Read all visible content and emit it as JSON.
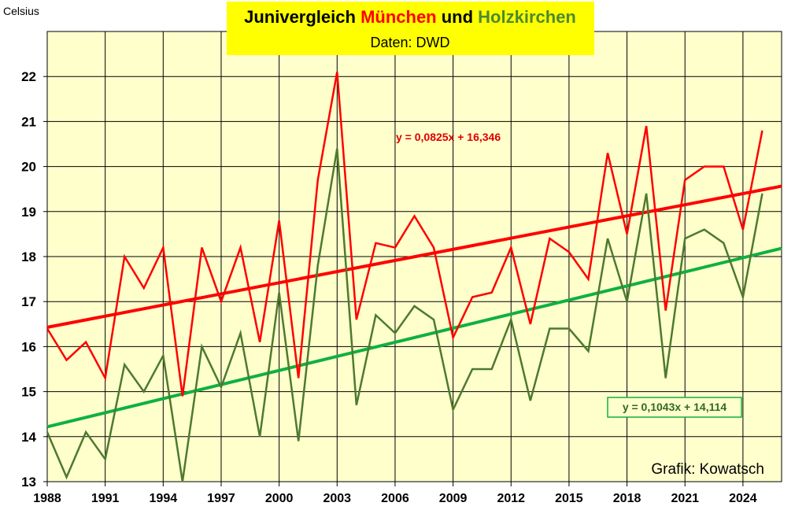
{
  "chart_data": {
    "type": "line",
    "title_parts": [
      {
        "text": "Junivergleich ",
        "color": "#000000"
      },
      {
        "text": "München",
        "color": "#ff0000"
      },
      {
        "text": " und ",
        "color": "#000000"
      },
      {
        "text": "Holzkirchen",
        "color": "#4d8a2e"
      }
    ],
    "subtitle": "Daten: DWD",
    "ylabel": "Celsius",
    "credit": "Grafik: Kowatsch",
    "xlim": [
      1988,
      2026
    ],
    "ylim": [
      13,
      23
    ],
    "xticks": [
      1988,
      1991,
      1994,
      1997,
      2000,
      2003,
      2006,
      2009,
      2012,
      2015,
      2018,
      2021,
      2024
    ],
    "yticks": [
      13,
      14,
      15,
      16,
      17,
      18,
      19,
      20,
      21,
      22
    ],
    "grid": true,
    "x": [
      1988,
      1989,
      1990,
      1991,
      1992,
      1993,
      1994,
      1995,
      1996,
      1997,
      1998,
      1999,
      2000,
      2001,
      2002,
      2003,
      2004,
      2005,
      2006,
      2007,
      2008,
      2009,
      2010,
      2011,
      2012,
      2013,
      2014,
      2015,
      2016,
      2017,
      2018,
      2019,
      2020,
      2021,
      2022,
      2023,
      2024,
      2025
    ],
    "series": [
      {
        "values": [
          16.4,
          15.7,
          16.1,
          15.3,
          18.0,
          17.3,
          18.2,
          14.9,
          18.2,
          17.0,
          18.2,
          16.1,
          18.8,
          15.3,
          19.7,
          22.1,
          16.6,
          18.3,
          18.2,
          18.9,
          18.2,
          16.2,
          17.1,
          17.2,
          18.2,
          16.5,
          18.4,
          18.1,
          17.5,
          20.3,
          18.5,
          20.9,
          16.8,
          19.7,
          20.0,
          20.0,
          18.6,
          20.8
        ],
        "color": "#ff0000"
      },
      {
        "values": [
          14.1,
          13.1,
          14.1,
          13.5,
          15.6,
          15.0,
          15.8,
          13.0,
          16.0,
          15.1,
          16.3,
          14.0,
          17.2,
          13.9,
          17.8,
          20.4,
          14.7,
          16.7,
          16.3,
          16.9,
          16.6,
          14.6,
          15.5,
          15.5,
          16.6,
          14.8,
          16.4,
          16.4,
          15.9,
          18.4,
          17.0,
          19.4,
          15.3,
          18.4,
          18.6,
          18.3,
          17.1,
          19.4
        ],
        "color": "#4d7a2e"
      }
    ],
    "trendlines": [
      {
        "slope": 0.0825,
        "intercept": 16.346,
        "color": "#ff0000",
        "label": "y = 0,0825x + 16,346"
      },
      {
        "slope": 0.1043,
        "intercept": 14.114,
        "color": "#10b040",
        "label": "y = 0,1043x + 14,114"
      }
    ],
    "plot_background": "#ffffcc",
    "title_box_color": "#ffff00"
  }
}
